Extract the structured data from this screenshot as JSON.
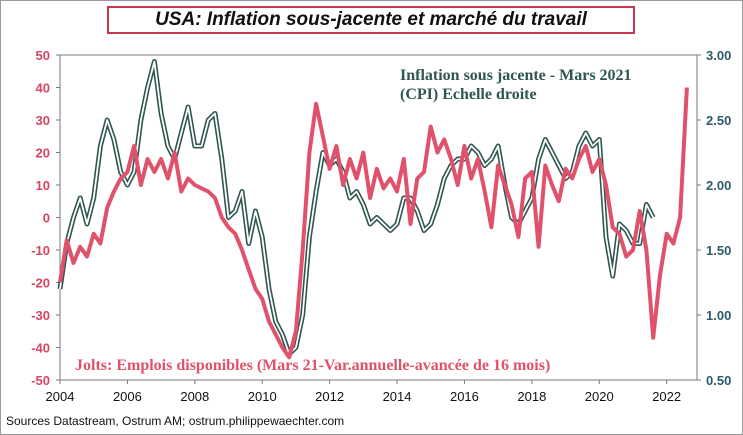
{
  "title": "USA: Inflation sous-jacente et marché du travail",
  "source": "Sources Datastream,  Ostrum AM; ostrum.philippewaechter.com",
  "chart_data": {
    "type": "line",
    "x_ticks": [
      "2004",
      "2006",
      "2008",
      "2010",
      "2012",
      "2014",
      "2016",
      "2018",
      "2020",
      "2022"
    ],
    "xlim": [
      2004.0,
      2022.9
    ],
    "y_left": {
      "ticks": [
        "50",
        "40",
        "30",
        "20",
        "10",
        "0",
        "-10",
        "-20",
        "-30",
        "-40",
        "-50"
      ],
      "ylim": [
        -50,
        50
      ]
    },
    "y_right": {
      "ticks": [
        "3.00",
        "2.50",
        "2.00",
        "1.50",
        "1.00",
        "0.50"
      ],
      "ylim": [
        0.5,
        3.0
      ]
    },
    "annotations": {
      "cpi_line1": "Inflation  sous jacente - Mars 2021",
      "cpi_line2": "(CPI) Echelle  droite",
      "jolts": "Jolts: Emplois disponibles (Mars 21-Var.annuelle-avancée de 16 mois)"
    },
    "colors": {
      "jolts": "#e0526b",
      "cpi_outline": "#2f5651",
      "left_axis": "#d9455f",
      "right_axis": "#2f5a6b"
    },
    "series": [
      {
        "name": "Jolts: Emplois disponibles",
        "axis": "left",
        "x": [
          2004.0,
          2004.2,
          2004.4,
          2004.6,
          2004.8,
          2005.0,
          2005.2,
          2005.4,
          2005.6,
          2005.8,
          2006.0,
          2006.2,
          2006.4,
          2006.6,
          2006.8,
          2007.0,
          2007.2,
          2007.4,
          2007.6,
          2007.8,
          2008.0,
          2008.2,
          2008.4,
          2008.6,
          2008.8,
          2009.0,
          2009.2,
          2009.4,
          2009.6,
          2009.8,
          2010.0,
          2010.2,
          2010.4,
          2010.6,
          2010.8,
          2011.0,
          2011.2,
          2011.4,
          2011.6,
          2011.8,
          2012.0,
          2012.2,
          2012.4,
          2012.6,
          2012.8,
          2013.0,
          2013.2,
          2013.4,
          2013.6,
          2013.8,
          2014.0,
          2014.2,
          2014.4,
          2014.6,
          2014.8,
          2015.0,
          2015.2,
          2015.4,
          2015.6,
          2015.8,
          2016.0,
          2016.2,
          2016.4,
          2016.6,
          2016.8,
          2017.0,
          2017.2,
          2017.4,
          2017.6,
          2017.8,
          2018.0,
          2018.2,
          2018.4,
          2018.6,
          2018.8,
          2019.0,
          2019.2,
          2019.4,
          2019.6,
          2019.8,
          2020.0,
          2020.2,
          2020.4,
          2020.6,
          2020.8,
          2021.0,
          2021.2,
          2021.4,
          2021.6,
          2021.8,
          2022.0,
          2022.2,
          2022.4,
          2022.6
        ],
        "values": [
          -20,
          -7,
          -14,
          -9,
          -12,
          -5,
          -8,
          3,
          8,
          12,
          14,
          22,
          10,
          18,
          14,
          18,
          12,
          20,
          8,
          12,
          10,
          9,
          8,
          6,
          0,
          -3,
          -5,
          -10,
          -16,
          -22,
          -25,
          -32,
          -36,
          -40,
          -43,
          -35,
          -10,
          20,
          35,
          25,
          15,
          22,
          10,
          18,
          12,
          20,
          6,
          15,
          9,
          12,
          8,
          18,
          -2,
          12,
          14,
          28,
          20,
          24,
          18,
          10,
          22,
          12,
          18,
          8,
          -3,
          16,
          10,
          4,
          -6,
          12,
          14,
          -9,
          16,
          10,
          5,
          15,
          12,
          18,
          22,
          14,
          18,
          10,
          -3,
          -5,
          -12,
          -10,
          2,
          -10,
          -37,
          -18,
          -5,
          -8,
          0,
          40
        ]
      },
      {
        "name": "Inflation sous jacente (CPI)",
        "axis": "right",
        "x": [
          2004.0,
          2004.2,
          2004.4,
          2004.6,
          2004.8,
          2005.0,
          2005.2,
          2005.4,
          2005.6,
          2005.8,
          2006.0,
          2006.2,
          2006.4,
          2006.6,
          2006.8,
          2007.0,
          2007.2,
          2007.4,
          2007.6,
          2007.8,
          2008.0,
          2008.2,
          2008.4,
          2008.6,
          2008.8,
          2009.0,
          2009.2,
          2009.4,
          2009.6,
          2009.8,
          2010.0,
          2010.2,
          2010.4,
          2010.6,
          2010.8,
          2011.0,
          2011.2,
          2011.4,
          2011.6,
          2011.8,
          2012.0,
          2012.2,
          2012.4,
          2012.6,
          2012.8,
          2013.0,
          2013.2,
          2013.4,
          2013.6,
          2013.8,
          2014.0,
          2014.2,
          2014.4,
          2014.6,
          2014.8,
          2015.0,
          2015.2,
          2015.4,
          2015.6,
          2015.8,
          2016.0,
          2016.2,
          2016.4,
          2016.6,
          2016.8,
          2017.0,
          2017.2,
          2017.4,
          2017.6,
          2017.8,
          2018.0,
          2018.2,
          2018.4,
          2018.6,
          2018.8,
          2019.0,
          2019.2,
          2019.4,
          2019.6,
          2019.8,
          2020.0,
          2020.2,
          2020.4,
          2020.6,
          2020.8,
          2021.0,
          2021.2,
          2021.4,
          2021.6
        ],
        "values": [
          1.2,
          1.55,
          1.75,
          1.9,
          1.7,
          1.9,
          2.3,
          2.5,
          2.35,
          2.1,
          2.0,
          2.1,
          2.5,
          2.75,
          2.95,
          2.55,
          2.3,
          2.2,
          2.4,
          2.6,
          2.3,
          2.3,
          2.5,
          2.55,
          2.2,
          1.75,
          1.8,
          1.95,
          1.55,
          1.8,
          1.6,
          1.2,
          0.95,
          0.85,
          0.7,
          0.75,
          1.0,
          1.6,
          1.95,
          2.25,
          2.15,
          2.2,
          2.1,
          1.9,
          1.95,
          1.85,
          1.7,
          1.75,
          1.7,
          1.65,
          1.7,
          1.9,
          1.9,
          1.8,
          1.65,
          1.7,
          1.85,
          2.05,
          2.15,
          2.2,
          2.2,
          2.3,
          2.25,
          2.15,
          2.2,
          2.3,
          2.0,
          1.75,
          1.7,
          1.8,
          1.9,
          2.2,
          2.35,
          2.25,
          2.15,
          2.05,
          2.1,
          2.3,
          2.4,
          2.3,
          2.35,
          1.6,
          1.3,
          1.7,
          1.65,
          1.55,
          1.55,
          1.85,
          1.75
        ]
      }
    ]
  }
}
